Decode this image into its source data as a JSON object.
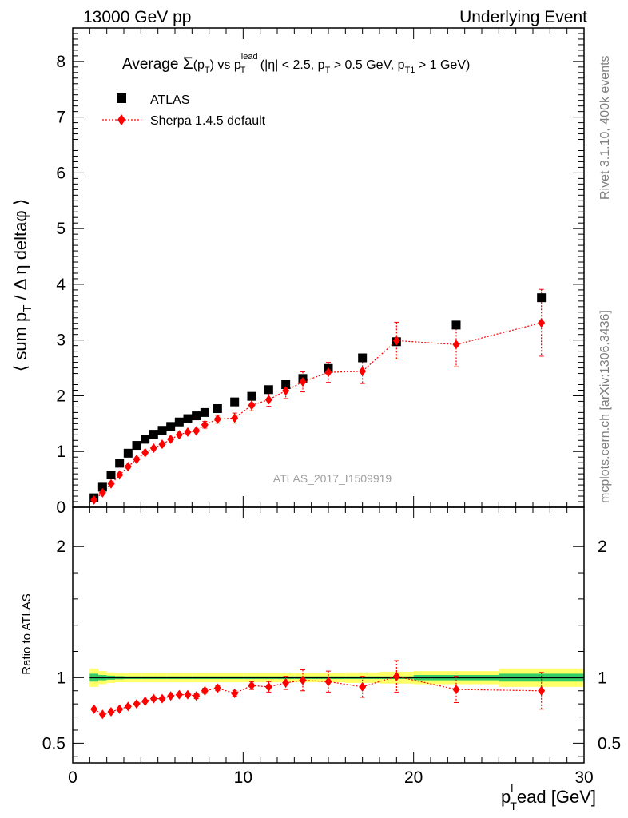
{
  "chart_data": {
    "type": "scatter",
    "header_left": "13000 GeV pp",
    "header_right": "Underlying Event",
    "title": {
      "p1": "Average ",
      "sigma": "Σ",
      "p2": "(p",
      "p2_sub": "T",
      "p3": ") vs p",
      "p3_sup": "lead",
      "p3_sub": "T",
      "p4": " (|η| < 2.5, p",
      "p4_sub": "T",
      "p5": " > 0.5 GeV, p",
      "p5_sub": "T1",
      "p6": " > 1 GeV)"
    },
    "ylabel_main": {
      "p1": "⟨ sum p",
      "p1_sub": "T",
      "p2": " / Δ η deltaφ ⟩"
    },
    "ylabel_ratio": "Ratio to ATLAS",
    "xlabel": {
      "p1": "p",
      "p1_sup": "l",
      "p1_sub": "T",
      "p2": "ead [GeV]"
    },
    "right_label_top": "Rivet 3.1.10,  400k events",
    "right_label_bottom": "mcplots.cern.ch [arXiv:1306.3436]",
    "watermark": "ATLAS_2017_I1509919",
    "xlim": [
      0,
      30
    ],
    "ylim_main": [
      0,
      8.6
    ],
    "ylim_ratio": [
      0.35,
      2.3
    ],
    "x_ticks": [
      "0",
      "10",
      "20",
      "30"
    ],
    "y_ticks_main": [
      "0",
      "1",
      "2",
      "3",
      "4",
      "5",
      "6",
      "7",
      "8"
    ],
    "y_ticks_ratio": [
      "0.5",
      "1",
      "2"
    ],
    "legend_placement": "top-left",
    "series": [
      {
        "name": "ATLAS",
        "color": "#000000",
        "marker": "square",
        "x": [
          1.25,
          1.75,
          2.25,
          2.75,
          3.25,
          3.75,
          4.25,
          4.75,
          5.25,
          5.75,
          6.25,
          6.75,
          7.25,
          7.75,
          8.5,
          9.5,
          10.5,
          11.5,
          12.5,
          13.5,
          15,
          17,
          19,
          22.5,
          27.5
        ],
        "y": [
          0.17,
          0.36,
          0.58,
          0.79,
          0.97,
          1.11,
          1.22,
          1.31,
          1.38,
          1.45,
          1.53,
          1.59,
          1.64,
          1.7,
          1.77,
          1.89,
          1.99,
          2.11,
          2.2,
          2.31,
          2.49,
          2.68,
          2.97,
          3.27,
          3.76
        ]
      },
      {
        "name": "Sherpa 1.4.5 default",
        "color": "#ff0000",
        "marker": "diamond",
        "x": [
          1.25,
          1.75,
          2.25,
          2.75,
          3.25,
          3.75,
          4.25,
          4.75,
          5.25,
          5.75,
          6.25,
          6.75,
          7.25,
          7.75,
          8.5,
          9.5,
          10.5,
          11.5,
          12.5,
          13.5,
          15,
          17,
          19,
          22.5,
          27.5
        ],
        "y": [
          0.13,
          0.26,
          0.42,
          0.58,
          0.73,
          0.86,
          0.98,
          1.06,
          1.13,
          1.22,
          1.3,
          1.35,
          1.37,
          1.48,
          1.58,
          1.6,
          1.83,
          1.93,
          2.09,
          2.25,
          2.42,
          2.44,
          2.99,
          2.92,
          3.31
        ],
        "yerr": [
          0.02,
          0.02,
          0.02,
          0.02,
          0.03,
          0.03,
          0.03,
          0.03,
          0.04,
          0.04,
          0.04,
          0.05,
          0.05,
          0.06,
          0.07,
          0.09,
          0.1,
          0.12,
          0.14,
          0.18,
          0.18,
          0.22,
          0.33,
          0.4,
          0.6
        ],
        "ratio": [
          0.76,
          0.72,
          0.74,
          0.76,
          0.78,
          0.8,
          0.82,
          0.84,
          0.84,
          0.86,
          0.87,
          0.87,
          0.86,
          0.9,
          0.92,
          0.88,
          0.94,
          0.93,
          0.96,
          0.98,
          0.97,
          0.93,
          1.01,
          0.91,
          0.9
        ],
        "ratio_err": [
          0.01,
          0.01,
          0.01,
          0.01,
          0.01,
          0.01,
          0.01,
          0.01,
          0.01,
          0.01,
          0.01,
          0.01,
          0.02,
          0.02,
          0.02,
          0.02,
          0.03,
          0.04,
          0.05,
          0.08,
          0.08,
          0.08,
          0.12,
          0.1,
          0.14
        ]
      }
    ],
    "ratio_band": {
      "x_edges": [
        1,
        1.5,
        2,
        2.5,
        3,
        3.5,
        4,
        4.5,
        5,
        5.5,
        6,
        6.5,
        7,
        7.5,
        8,
        9,
        10,
        11,
        12,
        13,
        14,
        16,
        18,
        20,
        25,
        30
      ],
      "stat_err": [
        0.03,
        0.02,
        0.015,
        0.012,
        0.01,
        0.01,
        0.01,
        0.01,
        0.01,
        0.01,
        0.01,
        0.01,
        0.01,
        0.01,
        0.01,
        0.01,
        0.01,
        0.01,
        0.01,
        0.01,
        0.01,
        0.01,
        0.01,
        0.02,
        0.03
      ],
      "tot_err": [
        0.07,
        0.05,
        0.04,
        0.035,
        0.035,
        0.035,
        0.035,
        0.035,
        0.035,
        0.035,
        0.035,
        0.035,
        0.035,
        0.035,
        0.035,
        0.035,
        0.035,
        0.035,
        0.035,
        0.035,
        0.035,
        0.04,
        0.045,
        0.05,
        0.07
      ],
      "stat_color": "#33cc66",
      "tot_color": "#ffff66"
    }
  }
}
